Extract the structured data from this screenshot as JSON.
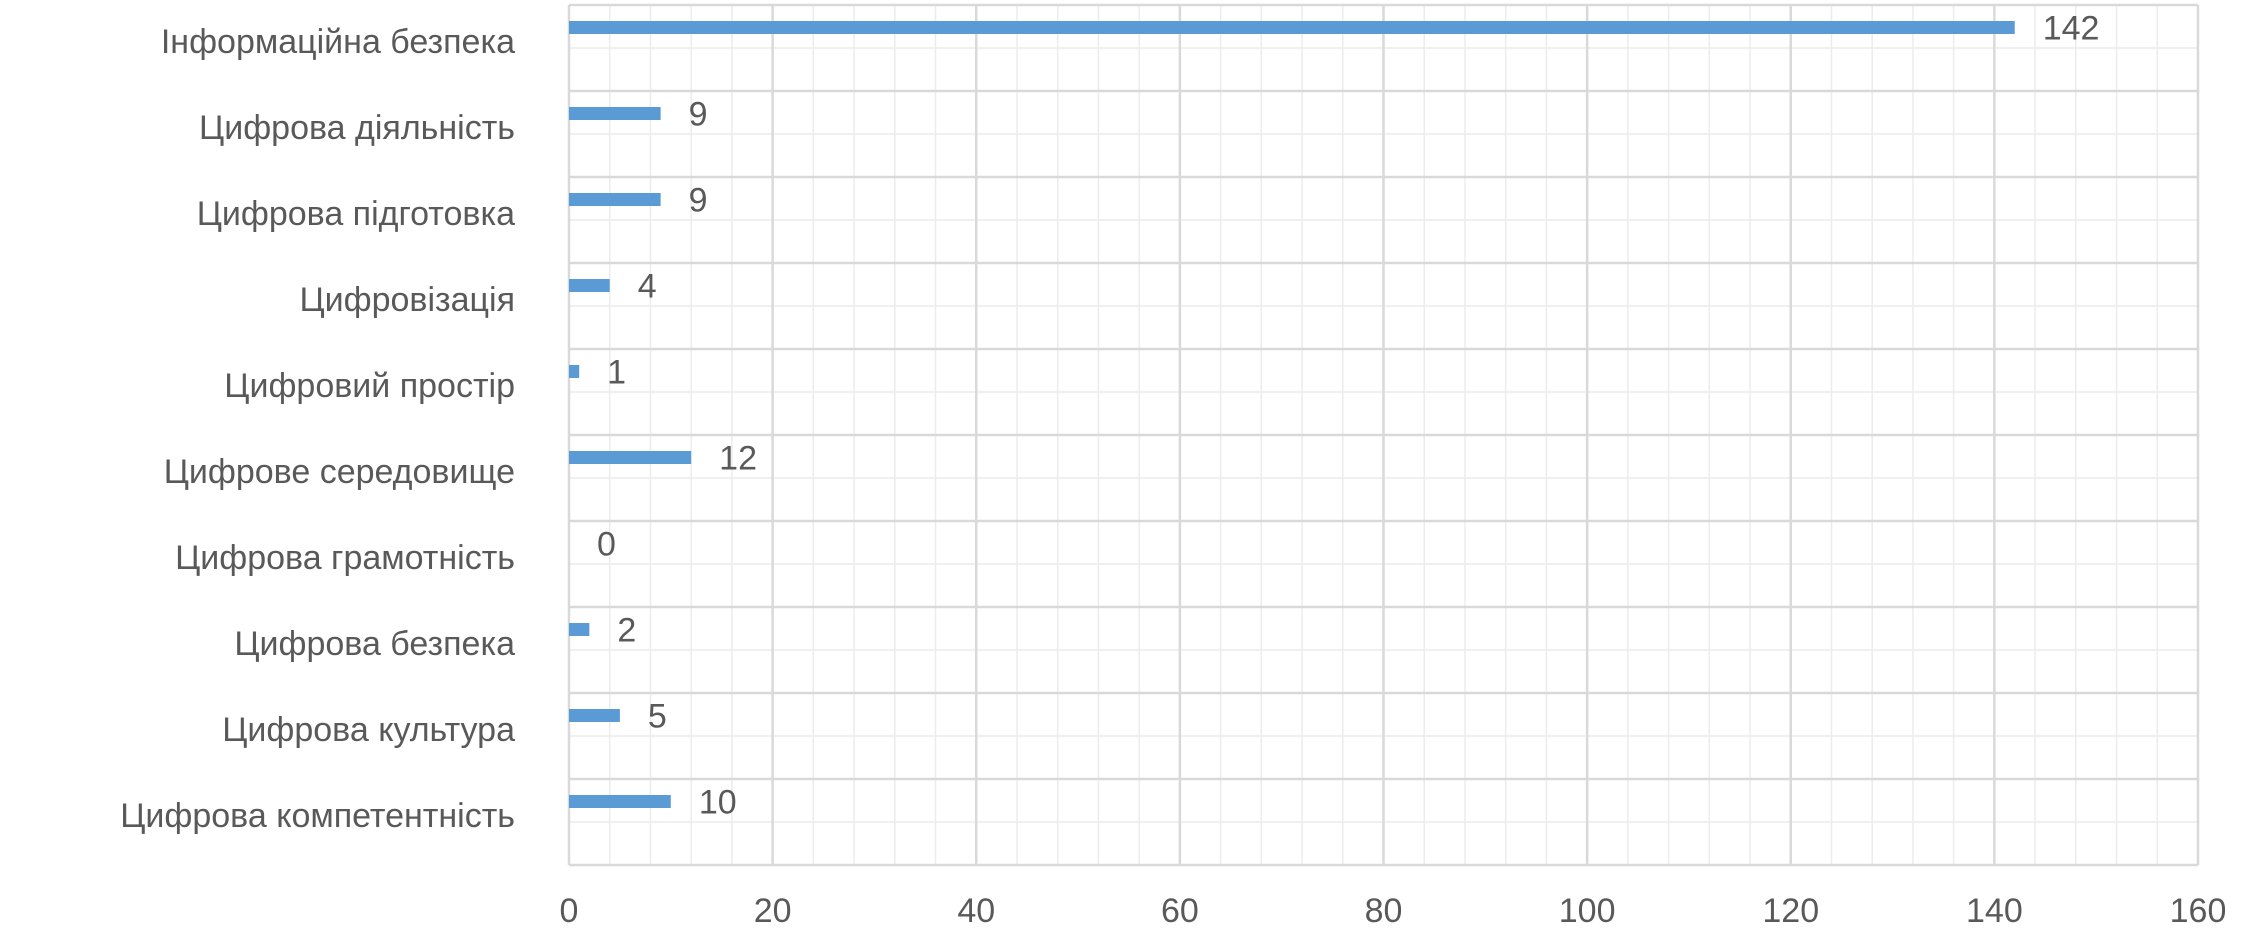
{
  "chart_data": {
    "type": "bar",
    "orientation": "horizontal",
    "title": "",
    "xlabel": "",
    "ylabel": "",
    "categories": [
      "Інформаційна безпека",
      "Цифрова діяльність",
      "Цифрова підготовка",
      "Цифровізація",
      "Цифровий простір",
      "Цифрове середовище",
      "Цифрова грамотність",
      "Цифрова безпека",
      "Цифрова культура",
      "Цифрова компетентність"
    ],
    "values": [
      142,
      9,
      9,
      4,
      1,
      12,
      0,
      2,
      5,
      10
    ],
    "xlim": [
      0,
      160
    ],
    "xticks": [
      0,
      20,
      40,
      60,
      80,
      100,
      120,
      140,
      160
    ],
    "minor_grid_step": 4,
    "grid": true,
    "legend": "none",
    "colors": {
      "bar": "#5b9bd5",
      "major_grid": "#d9d9d9",
      "minor_grid": "#ececec",
      "text": "#595959"
    }
  }
}
